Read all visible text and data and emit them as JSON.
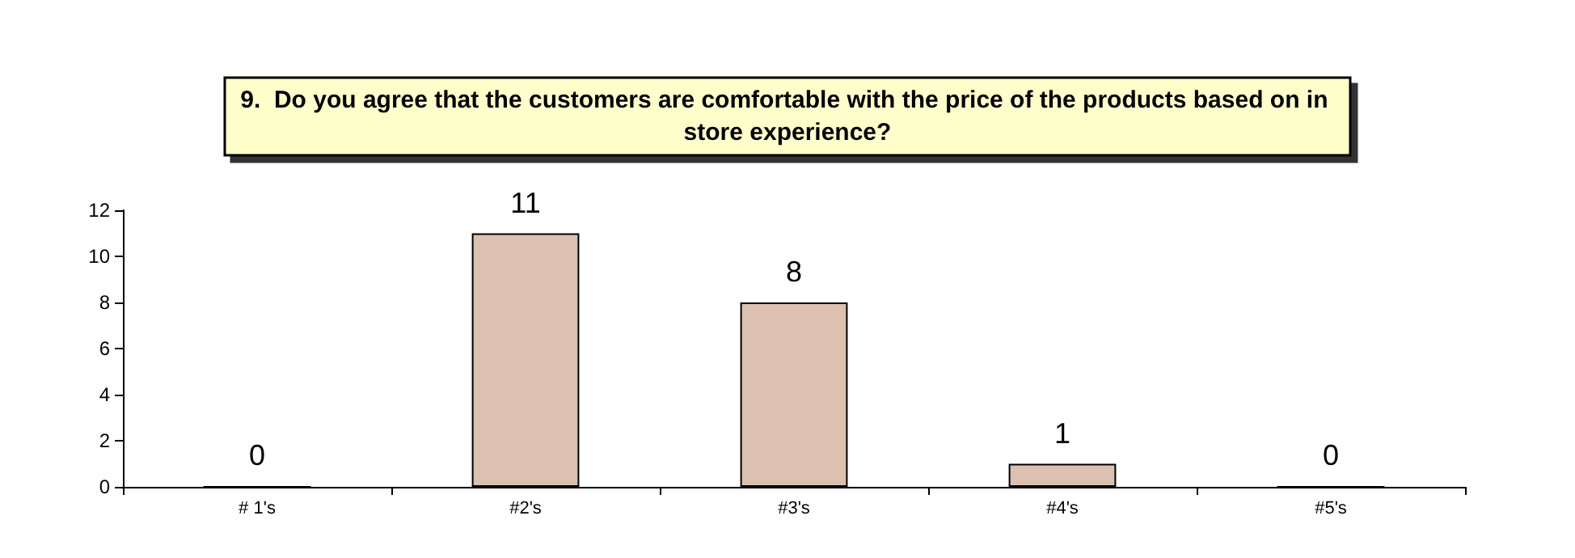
{
  "chart_data": {
    "type": "bar",
    "title": "9.  Do you agree that the customers are comfortable with the price of the products based on in store experience?",
    "categories": [
      "# 1's",
      "#2's",
      "#3's",
      "#4's",
      "#5's"
    ],
    "values": [
      0,
      11,
      8,
      1,
      0
    ],
    "color": "#dcc0b0",
    "ylim": [
      0,
      12
    ],
    "yticks": [
      0,
      2,
      4,
      6,
      8,
      10,
      12
    ],
    "grid": false,
    "data_labels": true
  }
}
